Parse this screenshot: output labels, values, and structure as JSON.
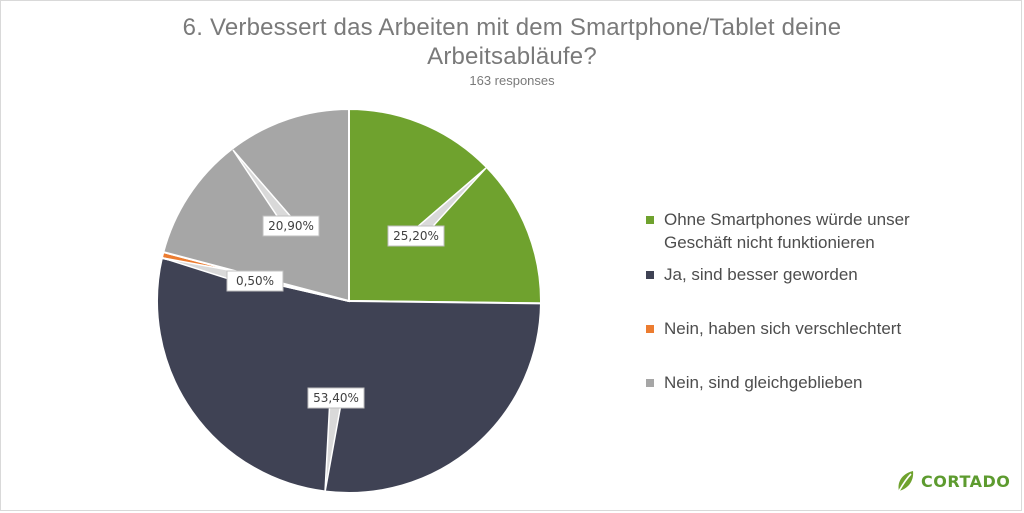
{
  "chart_data": {
    "type": "pie",
    "title": "6. Verbessert das Arbeiten mit dem Smartphone/Tablet deine Arbeitsabläufe?",
    "title_lines": [
      "6. Verbessert das Arbeiten mit dem Smartphone/Tablet deine",
      "Arbeitsabläufe?"
    ],
    "subtitle": "163 responses",
    "legend_position": "right",
    "slices": [
      {
        "label": "Ohne Smartphones würde unser Geschäft nicht funktionieren",
        "value": 25.2,
        "display": "25,20%",
        "color": "#6fa22e"
      },
      {
        "label": "Ja, sind besser geworden",
        "value": 53.4,
        "display": "53,40%",
        "color": "#3f4254"
      },
      {
        "label": "Nein, haben sich verschlechtert",
        "value": 0.5,
        "display": "0,50%",
        "color": "#ec7c30"
      },
      {
        "label": "Nein, sind gleichgeblieben",
        "value": 20.9,
        "display": "20,90%",
        "color": "#a6a6a6"
      }
    ]
  },
  "legend": {
    "items": [
      {
        "label": "Ohne Smartphones würde unser Geschäft nicht funktionieren",
        "color": "#6fa22e"
      },
      {
        "label": "Ja, sind besser geworden",
        "color": "#3f4254"
      },
      {
        "label": "Nein, haben sich verschlechtert",
        "color": "#ec7c30"
      },
      {
        "label": "Nein, sind gleichgeblieben",
        "color": "#a6a6a6"
      }
    ]
  },
  "brand": {
    "name": "CORTADO",
    "color": "#5d9b2f",
    "icon": "leaf-icon"
  }
}
